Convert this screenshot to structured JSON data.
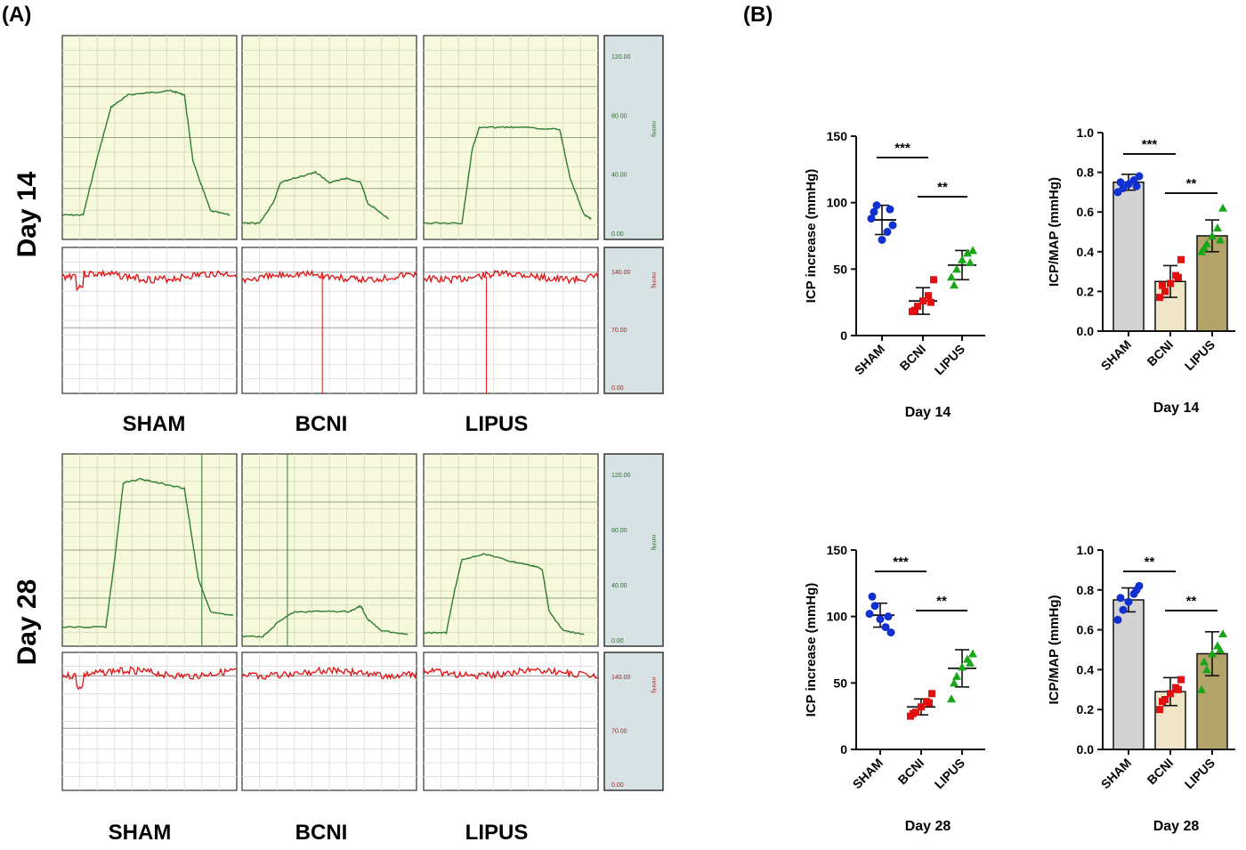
{
  "panel_a": {
    "label": "(A)",
    "rows": [
      {
        "day_label": "Day 14",
        "groups": [
          "SHAM",
          "BCNI",
          "LIPUS"
        ],
        "scale_top": {
          "ticks": [
            "120.00",
            "80.00",
            "40.00",
            "0.00"
          ],
          "unit": "mmHg",
          "color": "#1a7a1a"
        },
        "scale_bottom": {
          "ticks": [
            "140.00",
            "70.00",
            "0.00"
          ],
          "unit": "mmHg",
          "color": "#cc1111"
        }
      },
      {
        "day_label": "Day 28",
        "groups": [
          "SHAM",
          "BCNI",
          "LIPUS"
        ],
        "scale_top": {
          "ticks": [
            "120.00",
            "80.00",
            "40.00",
            "0.00"
          ],
          "unit": "mmHg",
          "color": "#1a7a1a"
        },
        "scale_bottom": {
          "ticks": [
            "140.00",
            "70.00",
            "0.00"
          ],
          "unit": "mmHg",
          "color": "#cc1111"
        }
      }
    ],
    "colors": {
      "trace_background": "#f7f9dc",
      "scale_background": "#d7e2e4",
      "icp_trace": "#2e7d32",
      "map_trace": "#e01010"
    }
  },
  "panel_b": {
    "label": "(B)",
    "group_colors": {
      "SHAM": "#1030d0",
      "BCNI": "#e01010",
      "LIPUS": "#1aa61a"
    },
    "bar_colors": {
      "SHAM": "#d3d3d3",
      "BCNI": "#efe6c8",
      "LIPUS": "#b5a46a"
    }
  },
  "chart_data": [
    {
      "type": "scatter",
      "title": "",
      "xlabel": "Day 14",
      "ylabel": "ICP increase (mmHg)",
      "categories": [
        "SHAM",
        "BCNI",
        "LIPUS"
      ],
      "ylim": [
        0,
        150
      ],
      "yticks": [
        0,
        50,
        100,
        150
      ],
      "points": [
        [
          88,
          98,
          72,
          78,
          83,
          93,
          95
        ],
        [
          18,
          22,
          26,
          30,
          42,
          19,
          25
        ],
        [
          44,
          50,
          57,
          62,
          64,
          38,
          55
        ]
      ],
      "means": [
        87,
        26,
        53
      ],
      "sd": [
        11,
        10,
        11
      ],
      "significance": [
        {
          "pair": [
            "SHAM",
            "BCNI"
          ],
          "label": "***"
        },
        {
          "pair": [
            "BCNI",
            "LIPUS"
          ],
          "label": "**"
        }
      ]
    },
    {
      "type": "bar",
      "title": "",
      "xlabel": "Day 14",
      "ylabel": "ICP/MAP (mmHg)",
      "categories": [
        "SHAM",
        "BCNI",
        "LIPUS"
      ],
      "ylim": [
        0,
        1.0
      ],
      "yticks": [
        "0.0",
        "0.2",
        "0.4",
        "0.6",
        "0.8",
        "1.0"
      ],
      "values": [
        0.75,
        0.25,
        0.48
      ],
      "sd": [
        0.04,
        0.08,
        0.08
      ],
      "points": [
        [
          0.7,
          0.72,
          0.74,
          0.76,
          0.78,
          0.75,
          0.73
        ],
        [
          0.17,
          0.2,
          0.24,
          0.28,
          0.36,
          0.23,
          0.27
        ],
        [
          0.4,
          0.44,
          0.48,
          0.52,
          0.62,
          0.42,
          0.46
        ]
      ],
      "significance": [
        {
          "pair": [
            "SHAM",
            "BCNI"
          ],
          "label": "***"
        },
        {
          "pair": [
            "BCNI",
            "LIPUS"
          ],
          "label": "**"
        }
      ]
    },
    {
      "type": "scatter",
      "title": "",
      "xlabel": "Day 28",
      "ylabel": "ICP increase (mmHg)",
      "categories": [
        "SHAM",
        "BCNI",
        "LIPUS"
      ],
      "ylim": [
        0,
        150
      ],
      "yticks": [
        0,
        50,
        100,
        150
      ],
      "points": [
        [
          102,
          108,
          98,
          92,
          88,
          115,
          100
        ],
        [
          25,
          28,
          32,
          36,
          42,
          27,
          35
        ],
        [
          38,
          55,
          62,
          68,
          72,
          50,
          65
        ]
      ],
      "means": [
        101,
        32,
        61
      ],
      "sd": [
        9,
        6,
        14
      ],
      "significance": [
        {
          "pair": [
            "SHAM",
            "BCNI"
          ],
          "label": "***"
        },
        {
          "pair": [
            "BCNI",
            "LIPUS"
          ],
          "label": "**"
        }
      ]
    },
    {
      "type": "bar",
      "title": "",
      "xlabel": "Day 28",
      "ylabel": "ICP/MAP (mmHg)",
      "categories": [
        "SHAM",
        "BCNI",
        "LIPUS"
      ],
      "ylim": [
        0,
        1.0
      ],
      "yticks": [
        "0.0",
        "0.2",
        "0.4",
        "0.6",
        "0.8",
        "1.0"
      ],
      "values": [
        0.75,
        0.29,
        0.48
      ],
      "sd": [
        0.06,
        0.07,
        0.11
      ],
      "points": [
        [
          0.65,
          0.7,
          0.74,
          0.78,
          0.82,
          0.76,
          0.8
        ],
        [
          0.2,
          0.25,
          0.28,
          0.31,
          0.35,
          0.24,
          0.3
        ],
        [
          0.3,
          0.4,
          0.48,
          0.52,
          0.58,
          0.44,
          0.5
        ]
      ],
      "significance": [
        {
          "pair": [
            "SHAM",
            "BCNI"
          ],
          "label": "**"
        },
        {
          "pair": [
            "BCNI",
            "LIPUS"
          ],
          "label": "**"
        }
      ]
    }
  ]
}
